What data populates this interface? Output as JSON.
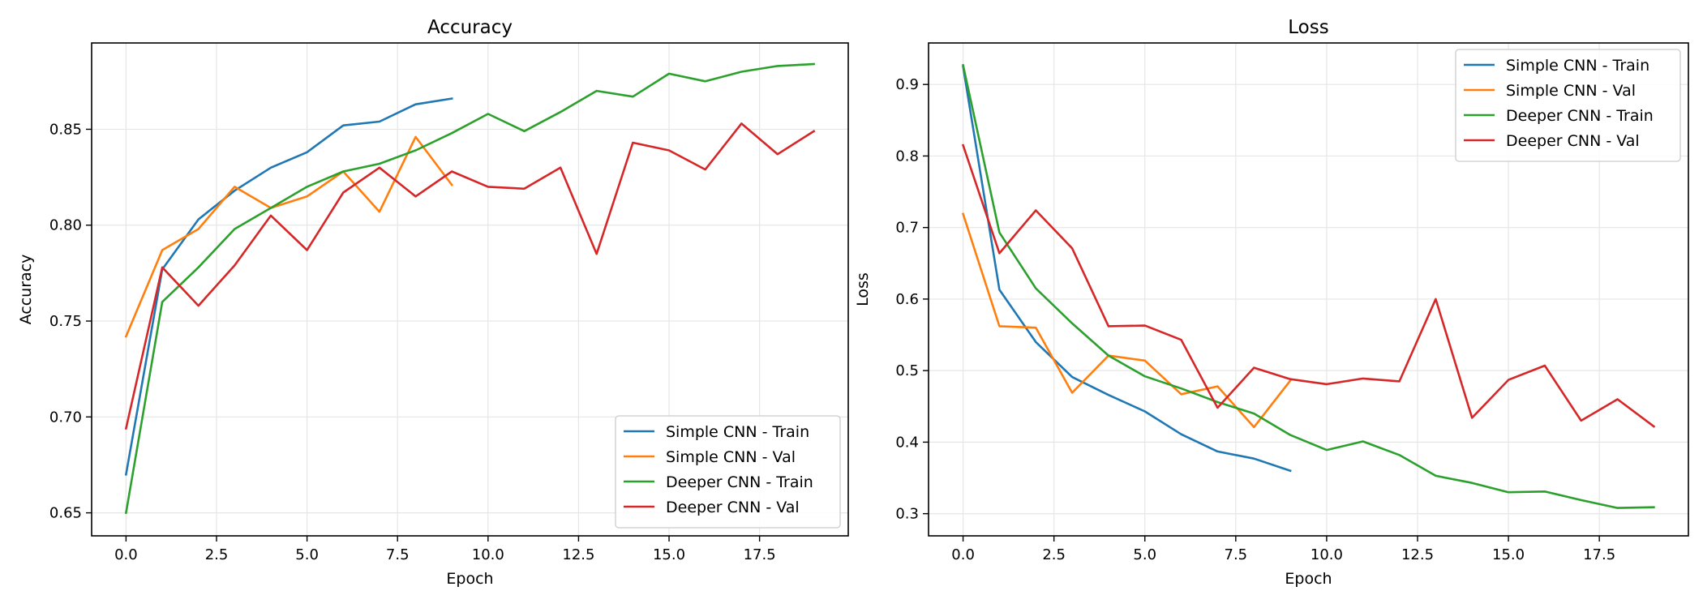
{
  "colors": {
    "blue": "#1f77b4",
    "orange": "#ff7f0e",
    "green": "#2ca02c",
    "red": "#d62728",
    "grid": "#e6e6e6"
  },
  "chart_data": [
    {
      "type": "line",
      "title": "Accuracy",
      "xlabel": "Epoch",
      "ylabel": "Accuracy",
      "xlim": [
        -0.95,
        19.95
      ],
      "ylim": [
        0.638,
        0.895
      ],
      "xticks": [
        0,
        2.5,
        5,
        7.5,
        10,
        12.5,
        15,
        17.5
      ],
      "xtick_labels": [
        "0.0",
        "2.5",
        "5.0",
        "7.5",
        "10.0",
        "12.5",
        "15.0",
        "17.5"
      ],
      "yticks": [
        0.65,
        0.7,
        0.75,
        0.8,
        0.85
      ],
      "ytick_labels": [
        "0.65",
        "0.70",
        "0.75",
        "0.80",
        "0.85"
      ],
      "grid": true,
      "legend_position": "lower-right",
      "series": [
        {
          "name": "Simple CNN - Train",
          "color": "#1f77b4",
          "x": [
            0,
            1,
            2,
            3,
            4,
            5,
            6,
            7,
            8,
            9
          ],
          "y": [
            0.67,
            0.777,
            0.803,
            0.818,
            0.83,
            0.838,
            0.852,
            0.854,
            0.863,
            0.866
          ]
        },
        {
          "name": "Simple CNN - Val",
          "color": "#ff7f0e",
          "x": [
            0,
            1,
            2,
            3,
            4,
            5,
            6,
            7,
            8,
            9
          ],
          "y": [
            0.742,
            0.787,
            0.798,
            0.82,
            0.809,
            0.815,
            0.828,
            0.807,
            0.846,
            0.821
          ]
        },
        {
          "name": "Deeper CNN - Train",
          "color": "#2ca02c",
          "x": [
            0,
            1,
            2,
            3,
            4,
            5,
            6,
            7,
            8,
            9,
            10,
            11,
            12,
            13,
            14,
            15,
            16,
            17,
            18,
            19
          ],
          "y": [
            0.65,
            0.76,
            0.778,
            0.798,
            0.809,
            0.82,
            0.828,
            0.832,
            0.839,
            0.848,
            0.858,
            0.849,
            0.859,
            0.87,
            0.867,
            0.879,
            0.875,
            0.88,
            0.883,
            0.884
          ]
        },
        {
          "name": "Deeper CNN - Val",
          "color": "#d62728",
          "x": [
            0,
            1,
            2,
            3,
            4,
            5,
            6,
            7,
            8,
            9,
            10,
            11,
            12,
            13,
            14,
            15,
            16,
            17,
            18,
            19
          ],
          "y": [
            0.694,
            0.778,
            0.758,
            0.779,
            0.805,
            0.787,
            0.817,
            0.83,
            0.815,
            0.828,
            0.82,
            0.819,
            0.83,
            0.785,
            0.843,
            0.839,
            0.829,
            0.853,
            0.837,
            0.849
          ]
        }
      ]
    },
    {
      "type": "line",
      "title": "Loss",
      "xlabel": "Epoch",
      "ylabel": "Loss",
      "xlim": [
        -0.95,
        19.95
      ],
      "ylim": [
        0.269,
        0.958
      ],
      "xticks": [
        0,
        2.5,
        5,
        7.5,
        10,
        12.5,
        15,
        17.5
      ],
      "xtick_labels": [
        "0.0",
        "2.5",
        "5.0",
        "7.5",
        "10.0",
        "12.5",
        "15.0",
        "17.5"
      ],
      "yticks": [
        0.3,
        0.4,
        0.5,
        0.6,
        0.7,
        0.8,
        0.9
      ],
      "ytick_labels": [
        "0.3",
        "0.4",
        "0.5",
        "0.6",
        "0.7",
        "0.8",
        "0.9"
      ],
      "grid": true,
      "legend_position": "upper-right",
      "series": [
        {
          "name": "Simple CNN - Train",
          "color": "#1f77b4",
          "x": [
            0,
            1,
            2,
            3,
            4,
            5,
            6,
            7,
            8,
            9
          ],
          "y": [
            0.925,
            0.613,
            0.54,
            0.491,
            0.466,
            0.443,
            0.411,
            0.387,
            0.377,
            0.36
          ]
        },
        {
          "name": "Simple CNN - Val",
          "color": "#ff7f0e",
          "x": [
            0,
            1,
            2,
            3,
            4,
            5,
            6,
            7,
            8,
            9
          ],
          "y": [
            0.719,
            0.562,
            0.56,
            0.469,
            0.521,
            0.514,
            0.467,
            0.478,
            0.421,
            0.486
          ]
        },
        {
          "name": "Deeper CNN - Train",
          "color": "#2ca02c",
          "x": [
            0,
            1,
            2,
            3,
            4,
            5,
            6,
            7,
            8,
            9,
            10,
            11,
            12,
            13,
            14,
            15,
            16,
            17,
            18,
            19
          ],
          "y": [
            0.927,
            0.693,
            0.615,
            0.566,
            0.521,
            0.492,
            0.475,
            0.456,
            0.44,
            0.41,
            0.389,
            0.401,
            0.382,
            0.353,
            0.343,
            0.33,
            0.331,
            0.319,
            0.308,
            0.309
          ]
        },
        {
          "name": "Deeper CNN - Val",
          "color": "#d62728",
          "x": [
            0,
            1,
            2,
            3,
            4,
            5,
            6,
            7,
            8,
            9,
            10,
            11,
            12,
            13,
            14,
            15,
            16,
            17,
            18,
            19
          ],
          "y": [
            0.815,
            0.664,
            0.724,
            0.671,
            0.562,
            0.563,
            0.543,
            0.448,
            0.504,
            0.488,
            0.481,
            0.489,
            0.485,
            0.6,
            0.434,
            0.487,
            0.507,
            0.43,
            0.46,
            0.422
          ]
        }
      ]
    }
  ]
}
